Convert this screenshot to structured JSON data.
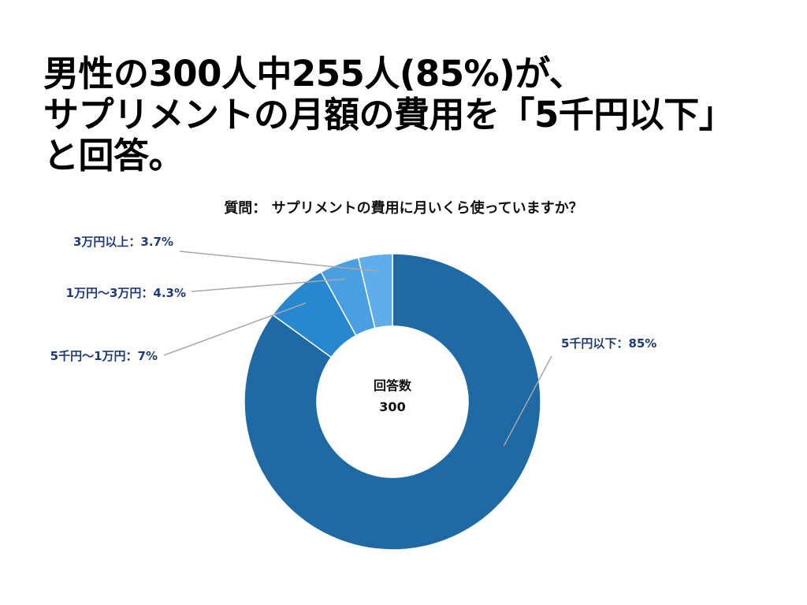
{
  "headline": {
    "line1": "男性の300人中255人(85%)が、",
    "line2": "サプリメントの月額の費用を「5千円以下」",
    "line3": "と回答。"
  },
  "chart_data": {
    "type": "pie",
    "title": "質問： サプリメントの費用に月いくら使っていますか？",
    "center_label": "回答数",
    "center_value": "300",
    "slices": [
      {
        "label": "5千円以下：85%",
        "value": 85,
        "color": "#1f6aa5"
      },
      {
        "label": "5千円〜1万円：7%",
        "value": 7,
        "color": "#2787cf"
      },
      {
        "label": "1万円〜3万円：4.3%",
        "value": 4.3,
        "color": "#4a9fe0"
      },
      {
        "label": "3万円以上：3.7%",
        "value": 3.7,
        "color": "#5fadea"
      }
    ]
  }
}
